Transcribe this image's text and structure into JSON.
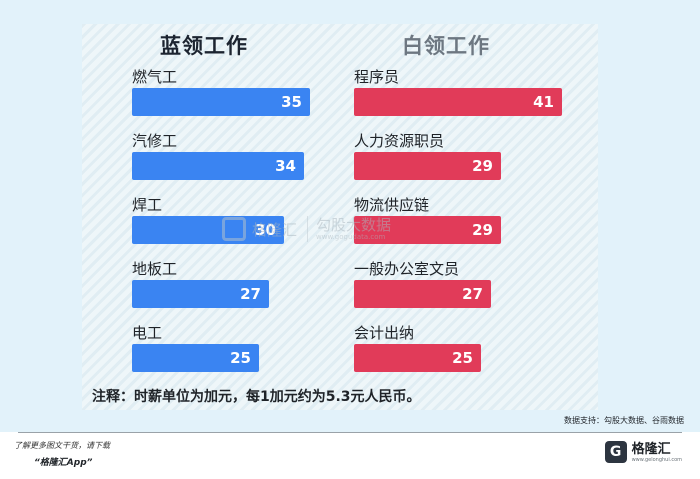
{
  "chart_data": {
    "type": "bar",
    "orientation": "horizontal",
    "groups": [
      {
        "title": "蓝领工作",
        "color": "#3a84f2",
        "categories": [
          "燃气工",
          "汽修工",
          "焊工",
          "地板工",
          "电工"
        ],
        "values": [
          35,
          34,
          30,
          27,
          25
        ]
      },
      {
        "title": "白领工作",
        "color": "#e13b59",
        "categories": [
          "程序员",
          "人力资源职员",
          "物流供应链",
          "一般办公室文员",
          "会计出纳"
        ],
        "values": [
          41,
          29,
          29,
          27,
          25
        ]
      }
    ],
    "xlim": [
      0,
      41
    ],
    "note": "注释：时薪单位为加元，每1加元约为5.3元人民币。",
    "source": "数据支持：勾股大数据、谷雨数据"
  },
  "watermark": {
    "text": "格隆汇",
    "side": "勾股大数据",
    "url": "www.gogudata.com"
  },
  "footer": {
    "line1": "了解更多图文干货，请下载",
    "line2": "“格隆汇App”",
    "logo_name": "格隆汇",
    "logo_mark": "G",
    "logo_url": "www.gelonghui.com"
  }
}
